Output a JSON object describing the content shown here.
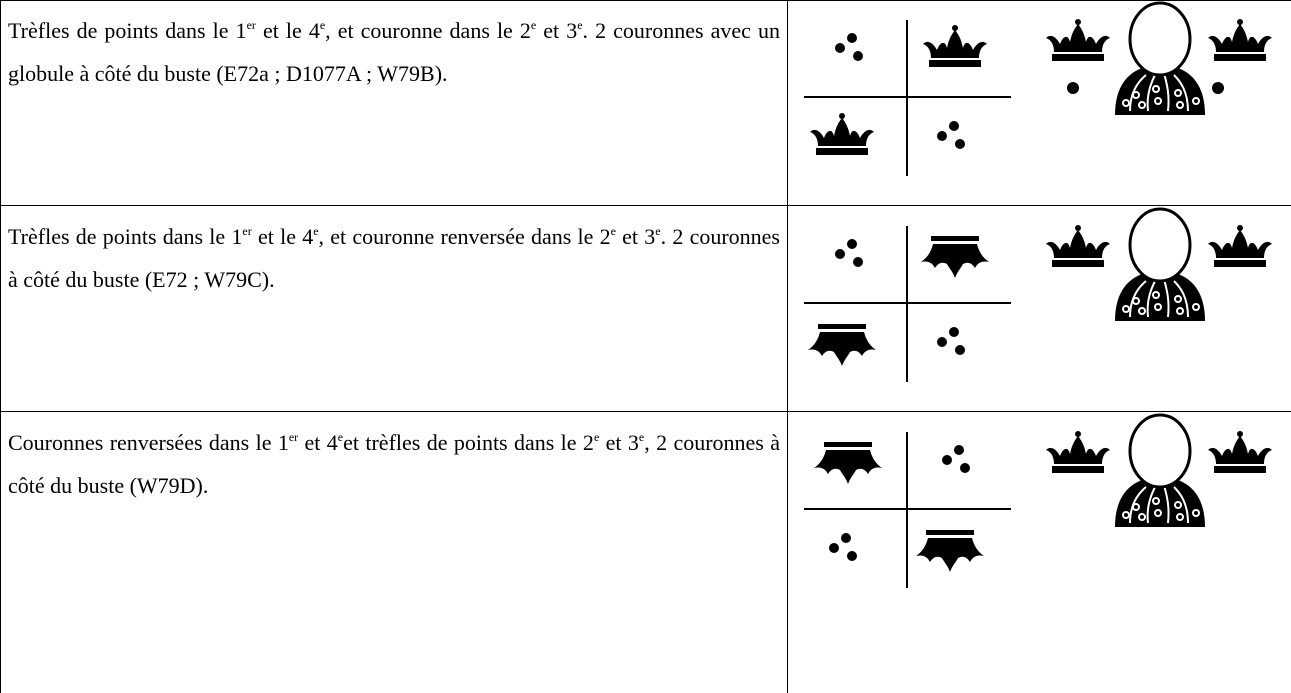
{
  "table": {
    "rows": [
      {
        "description": [
          {
            "text": "Trèfles de points dans le 1",
            "sup": "er"
          },
          {
            "text": " et le 4",
            "sup": "e"
          },
          {
            "text": ", et couronne dans le 2",
            "sup": "e"
          },
          {
            "text": " et 3",
            "sup": "e"
          },
          {
            "text": ". 2 couronnes avec un globule à côté du buste (E72a ; D1077A ; W79B)."
          }
        ]
      },
      {
        "description": [
          {
            "text": "Trèfles de points dans le 1",
            "sup": "er"
          },
          {
            "text": " et le 4",
            "sup": "e"
          },
          {
            "text": ", et couronne renversée dans le 2",
            "sup": "e"
          },
          {
            "text": " et 3",
            "sup": "e"
          },
          {
            "text": ". 2 couronnes à côté du buste (E72 ; W79C)."
          }
        ]
      },
      {
        "description": [
          {
            "text": "Couronnes renversées dans le 1",
            "sup": "er"
          },
          {
            "text": " et 4",
            "sup": "e"
          },
          {
            "text": "et trèfles de points dans le 2",
            "sup": "e"
          },
          {
            "text": " et 3",
            "sup": "e"
          },
          {
            "text": ", 2 couronnes à côté du buste  (W79D)."
          }
        ]
      }
    ]
  }
}
